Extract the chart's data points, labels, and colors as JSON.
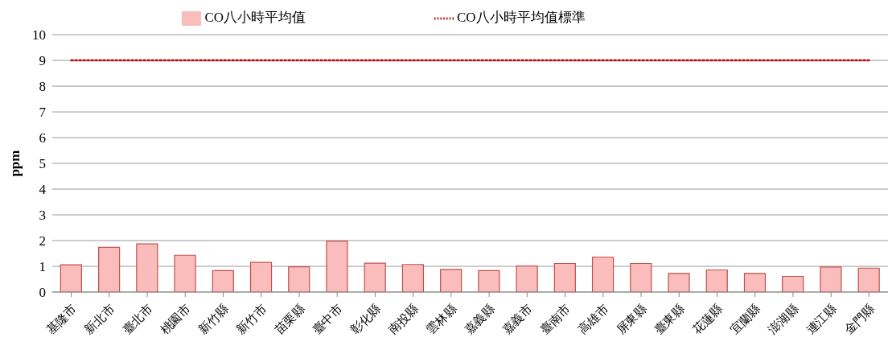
{
  "chart_data": {
    "type": "bar",
    "ylabel": "ppm",
    "categories": [
      "基隆市",
      "新北市",
      "臺北市",
      "桃園市",
      "新竹縣",
      "新竹市",
      "苗栗縣",
      "臺中市",
      "彰化縣",
      "南投縣",
      "雲林縣",
      "嘉義縣",
      "嘉義市",
      "臺南市",
      "高雄市",
      "屏東縣",
      "臺東縣",
      "花蓮縣",
      "宜蘭縣",
      "澎湖縣",
      "連江縣",
      "金門縣"
    ],
    "series": [
      {
        "name": "CO八小時平均值",
        "color": "#fbbcbc",
        "values": [
          1.06,
          1.74,
          1.87,
          1.43,
          0.83,
          1.15,
          0.98,
          1.98,
          1.12,
          1.07,
          0.88,
          0.83,
          1.01,
          1.11,
          1.36,
          1.11,
          0.72,
          0.86,
          0.72,
          0.61,
          0.97,
          0.93
        ]
      },
      {
        "name": "CO八小時平均值標準",
        "type": "line",
        "color": "#c00000",
        "line_style": "dotted",
        "marker": "none",
        "values": [
          9,
          9,
          9,
          9,
          9,
          9,
          9,
          9,
          9,
          9,
          9,
          9,
          9,
          9,
          9,
          9,
          9,
          9,
          9,
          9,
          9,
          9
        ]
      }
    ],
    "ylim": [
      0,
      10
    ],
    "yticks": [
      0,
      1,
      2,
      3,
      4,
      5,
      6,
      7,
      8,
      9,
      10
    ],
    "grid": "y",
    "legend": "top"
  }
}
